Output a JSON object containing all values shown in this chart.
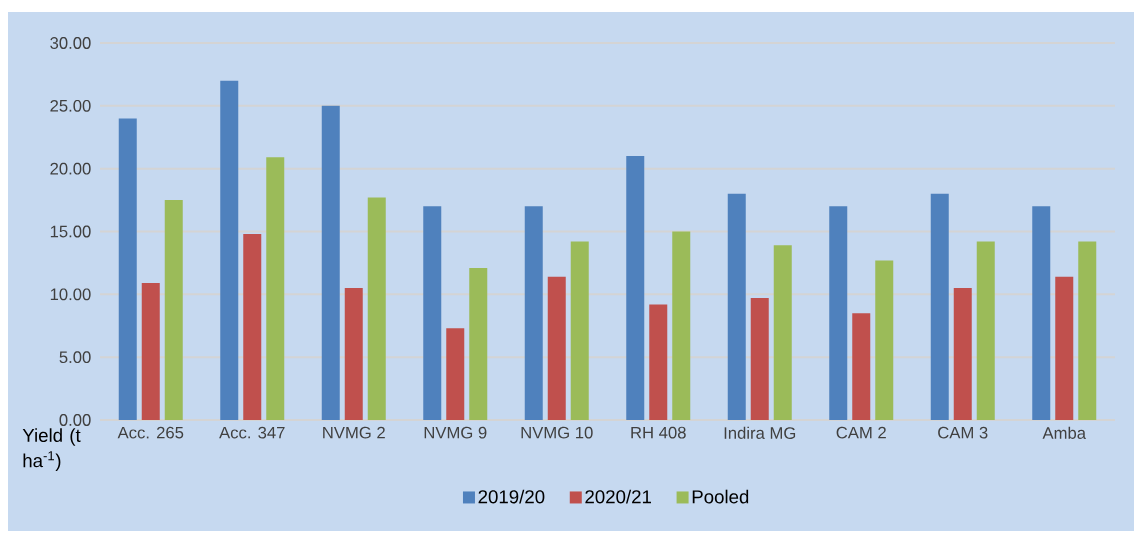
{
  "chart_data": {
    "type": "bar",
    "ylabel": "Yield (t ha$^{-1}$)",
    "categories": [
      "Acc. 265",
      "Acc. 347",
      "NVMG 2",
      "NVMG 9",
      "NVMG 10",
      "RH  408",
      "Indira MG",
      "CAM 2",
      "CAM 3",
      "Amba"
    ],
    "series": [
      {
        "name": "2019/20",
        "color": "#4f81bd",
        "values": [
          24.0,
          27.0,
          25.0,
          17.0,
          17.0,
          21.0,
          18.0,
          17.0,
          18.0,
          17.0
        ]
      },
      {
        "name": "2020/21",
        "color": "#c0504d",
        "values": [
          10.9,
          14.8,
          10.5,
          7.3,
          11.4,
          9.2,
          9.7,
          8.5,
          10.5,
          11.4
        ]
      },
      {
        "name": "Pooled",
        "color": "#9bbb59",
        "values": [
          17.5,
          20.9,
          17.7,
          12.1,
          14.2,
          15.0,
          13.9,
          12.7,
          14.2,
          14.2
        ]
      }
    ],
    "ylim": [
      0,
      30
    ],
    "yticks": [
      {
        "value": 0,
        "label": "0.00"
      },
      {
        "value": 5,
        "label": "5.00"
      },
      {
        "value": 10,
        "label": "10.00"
      },
      {
        "value": 15,
        "label": "15.00"
      },
      {
        "value": 20,
        "label": "20.00"
      },
      {
        "value": 25,
        "label": "25.00"
      },
      {
        "value": 30,
        "label": "30.00"
      }
    ],
    "grid": "y",
    "legend": "bottom"
  }
}
